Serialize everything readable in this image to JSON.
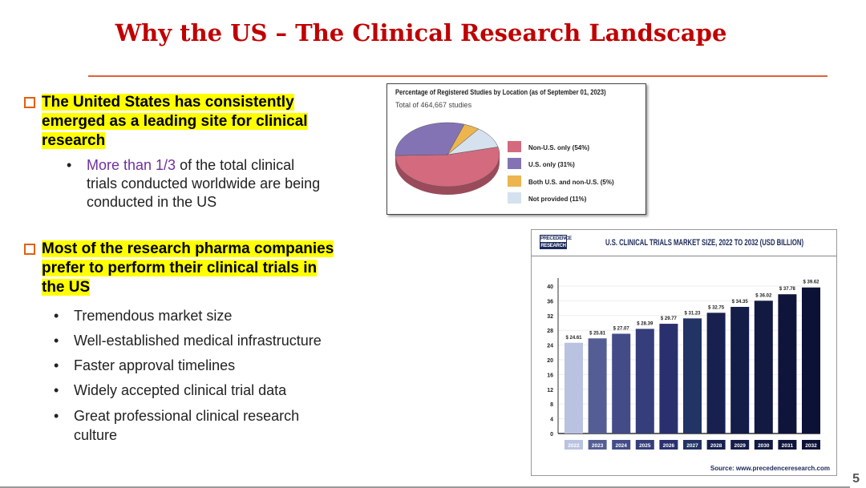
{
  "title": "Why the US – The Clinical Research Landscape",
  "section1": {
    "heading_lines": [
      "The United States has consistently",
      "emerged as a leading site for clinical",
      "research"
    ],
    "bullet": {
      "highlight": "More than 1/3",
      "rest_lines": [
        " of the total clinical",
        "trials conducted worldwide are being",
        "conducted in the US"
      ]
    }
  },
  "section2": {
    "heading_lines": [
      "Most of the research pharma companies",
      "prefer to perform their clinical trials in",
      "the US"
    ],
    "bullets": [
      "Tremendous market size",
      "Well-established medical infrastructure",
      "Faster approval timelines",
      "Widely accepted clinical trial data",
      "Great professional clinical research",
      "culture"
    ]
  },
  "page_number": "5",
  "chart_data": [
    {
      "type": "pie",
      "title": "Percentage of Registered Studies by Location (as of September 01, 2023)",
      "subtitle": "Total of 464,667 studies",
      "slices": [
        {
          "label": "Non-U.S. only (54%)",
          "value": 54,
          "color": "#d46a7e"
        },
        {
          "label": "U.S. only (31%)",
          "value": 31,
          "color": "#8473b4"
        },
        {
          "label": "Both U.S. and non-U.S. (5%)",
          "value": 5,
          "color": "#ecb54e"
        },
        {
          "label": "Not provided (11%)",
          "value": 11,
          "color": "#d5e1ee"
        }
      ]
    },
    {
      "type": "bar",
      "title": "U.S. CLINICAL TRIALS MARKET SIZE, 2022 TO 2032 (USD BILLION)",
      "logo": [
        "PRECEDENCE",
        "RESEARCH"
      ],
      "source": "Source: www.precedenceresearch.com",
      "categories": [
        "2022",
        "2023",
        "2024",
        "2025",
        "2026",
        "2027",
        "2028",
        "2029",
        "2030",
        "2031",
        "2032"
      ],
      "values": [
        24.61,
        25.81,
        27.07,
        28.39,
        29.77,
        31.23,
        32.75,
        34.35,
        36.02,
        37.78,
        39.62
      ],
      "labels": [
        "$ 24.61",
        "$ 25.81",
        "$ 27.07",
        "$ 28.39",
        "$ 29.77",
        "$ 31.23",
        "$ 32.75",
        "$ 34.35",
        "$ 36.02",
        "$ 37.78",
        "$ 39.62"
      ],
      "colors": [
        "#b9c2e0",
        "#555e94",
        "#434c88",
        "#353d7a",
        "#2a306e",
        "#223465",
        "#17204f",
        "#141c48",
        "#121a42",
        "#0f153a",
        "#0c1236"
      ],
      "yticks": [
        "0",
        "4",
        "8",
        "12",
        "16",
        "20",
        "24",
        "28",
        "32",
        "36",
        "40"
      ],
      "ylim": [
        0,
        40
      ]
    }
  ]
}
